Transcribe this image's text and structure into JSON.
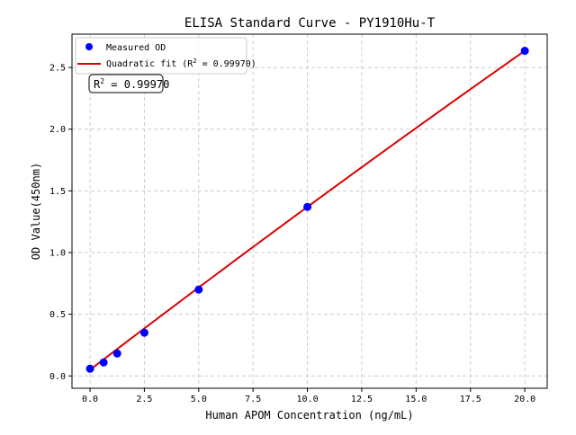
{
  "chart_data": {
    "type": "scatter",
    "title": "ELISA Standard Curve - PY1910Hu-T",
    "xlabel": "Human APOM Concentration (ng/mL)",
    "ylabel": "OD Value(450nm)",
    "xlim": [
      -0.83,
      21.03
    ],
    "ylim": [
      -0.1,
      2.77
    ],
    "xticks": [
      0.0,
      2.5,
      5.0,
      7.5,
      10.0,
      12.5,
      15.0,
      17.5,
      20.0
    ],
    "xtick_labels": [
      "0.0",
      "2.5",
      "5.0",
      "7.5",
      "10.0",
      "12.5",
      "15.0",
      "17.5",
      "20.0"
    ],
    "yticks": [
      0.0,
      0.5,
      1.0,
      1.5,
      2.0,
      2.5
    ],
    "ytick_labels": [
      "0.0",
      "0.5",
      "1.0",
      "1.5",
      "2.0",
      "2.5"
    ],
    "grid": true,
    "legend_placement": "top-left",
    "series": [
      {
        "name": "Measured OD",
        "kind": "scatter",
        "color": "#0000ff",
        "x": [
          0,
          0.625,
          1.25,
          2.5,
          5,
          10,
          20
        ],
        "y": [
          0.058,
          0.109,
          0.182,
          0.35,
          0.7,
          1.37,
          2.635
        ]
      },
      {
        "name": "Quadratic fit (R² = 0.99970)",
        "name_prefix": "Quadratic fit (R",
        "name_suffix": " = 0.99970)",
        "kind": "line",
        "color": "#dd0000",
        "coefficients": {
          "a": 0.05,
          "b": 0.13475,
          "c": -0.000275
        },
        "x_range": [
          0,
          20
        ]
      }
    ],
    "annotation": {
      "prefix": "R",
      "sup": "2",
      "suffix": " = 0.99970"
    }
  }
}
